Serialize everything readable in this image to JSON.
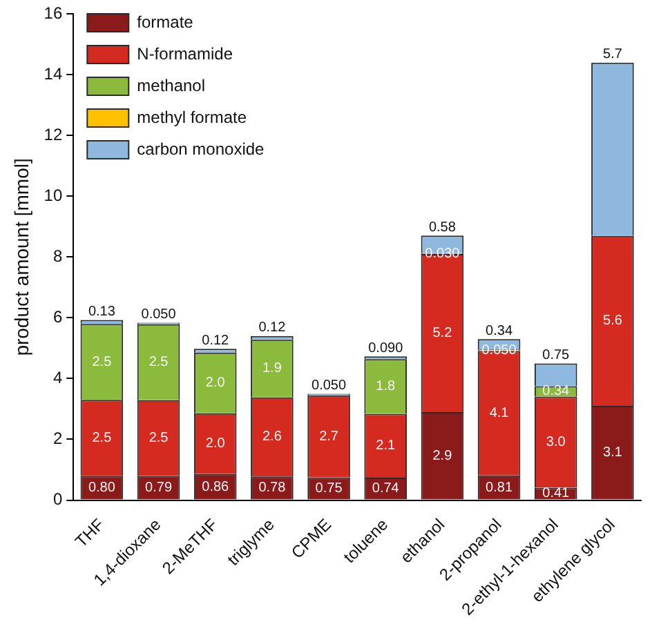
{
  "chart_data": {
    "type": "bar",
    "stacked": true,
    "ylabel": "product amount [mmol]",
    "categories": [
      "THF",
      "1,4-dioxane",
      "2-MeTHF",
      "triglyme",
      "CPME",
      "toluene",
      "ethanol",
      "2-propanol",
      "2-ethyl-1-hexanol",
      "ethylene glycol"
    ],
    "series": [
      {
        "name": "formate",
        "color": "#8b1a1a",
        "values": [
          0.8,
          0.79,
          0.86,
          0.78,
          0.75,
          0.74,
          2.9,
          0.81,
          0.41,
          3.1
        ],
        "value_labels": [
          "0.80",
          "0.79",
          "0.86",
          "0.78",
          "0.75",
          "0.74",
          "2.9",
          "0.81",
          "0.41",
          "3.1"
        ]
      },
      {
        "name": "N-formamide",
        "color": "#d42a20",
        "values": [
          2.5,
          2.5,
          2.0,
          2.6,
          2.7,
          2.1,
          5.2,
          4.1,
          3.0,
          5.6
        ],
        "value_labels": [
          "2.5",
          "2.5",
          "2.0",
          "2.6",
          "2.7",
          "2.1",
          "5.2",
          "4.1",
          "3.0",
          "5.6"
        ]
      },
      {
        "name": "methanol",
        "color": "#8cba3c",
        "values": [
          2.5,
          2.5,
          2.0,
          1.9,
          null,
          1.8,
          null,
          null,
          0.34,
          null
        ],
        "value_labels": [
          "2.5",
          "2.5",
          "2.0",
          "1.9",
          null,
          "1.8",
          null,
          null,
          "0.34",
          null
        ]
      },
      {
        "name": "methyl formate",
        "color": "#ffc000",
        "values": [
          null,
          null,
          null,
          null,
          null,
          null,
          0.03,
          0.05,
          null,
          null
        ],
        "value_labels": [
          null,
          null,
          null,
          null,
          null,
          null,
          "0.030",
          "0.050",
          null,
          null
        ]
      },
      {
        "name": "carbon monoxide",
        "color": "#8fb8de",
        "values": [
          0.13,
          0.05,
          0.12,
          0.12,
          0.05,
          0.09,
          0.58,
          0.34,
          0.75,
          5.7
        ],
        "value_labels": [
          "0.13",
          "0.050",
          "0.12",
          "0.12",
          "0.050",
          "0.090",
          "0.58",
          "0.34",
          "0.75",
          "5.7"
        ]
      }
    ],
    "ylim": [
      0,
      16
    ],
    "yticks": [
      0,
      2,
      4,
      6,
      8,
      10,
      12,
      14,
      16
    ],
    "grid": false,
    "legend": "top left"
  }
}
